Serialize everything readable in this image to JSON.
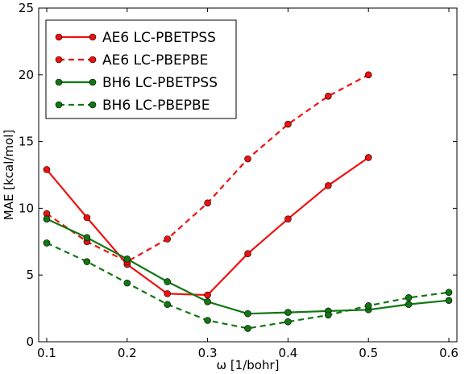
{
  "chart_data": {
    "type": "line",
    "title": "",
    "xlabel": "ω [1/bohr]",
    "ylabel": "MAE [kcal/mol]",
    "xlim": [
      0.09,
      0.61
    ],
    "ylim": [
      0,
      25
    ],
    "xticks": [
      0.1,
      0.2,
      0.3,
      0.4,
      0.5,
      0.6
    ],
    "xtick_labels": [
      "0.1",
      "0.2",
      "0.3",
      "0.4",
      "0.5",
      "0.6"
    ],
    "yticks": [
      0,
      5,
      10,
      15,
      20,
      25
    ],
    "ytick_labels": [
      "0",
      "5",
      "10",
      "15",
      "20",
      "25"
    ],
    "grid": false,
    "legend_position": "top-left",
    "series": [
      {
        "name": "AE6 LC-PBETPSS",
        "color": "#ee1111",
        "linestyle": "solid",
        "x": [
          0.1,
          0.15,
          0.2,
          0.25,
          0.3,
          0.35,
          0.4,
          0.45,
          0.5
        ],
        "y": [
          12.9,
          9.3,
          5.8,
          3.6,
          3.5,
          6.6,
          9.2,
          11.7,
          13.8
        ]
      },
      {
        "name": "AE6 LC-PBEPBE",
        "color": "#ee1111",
        "linestyle": "dashed",
        "x": [
          0.1,
          0.15,
          0.2,
          0.25,
          0.3,
          0.35,
          0.4,
          0.45,
          0.5
        ],
        "y": [
          9.6,
          7.5,
          6.0,
          7.7,
          10.4,
          13.7,
          16.3,
          18.4,
          20.0
        ]
      },
      {
        "name": "BH6 LC-PBETPSS",
        "color": "#117711",
        "linestyle": "solid",
        "x": [
          0.1,
          0.15,
          0.2,
          0.25,
          0.3,
          0.35,
          0.4,
          0.45,
          0.5,
          0.55,
          0.6
        ],
        "y": [
          9.2,
          7.8,
          6.2,
          4.5,
          3.0,
          2.1,
          2.2,
          2.3,
          2.4,
          2.8,
          3.1
        ]
      },
      {
        "name": "BH6 LC-PBEPBE",
        "color": "#117711",
        "linestyle": "dashed",
        "x": [
          0.1,
          0.15,
          0.2,
          0.25,
          0.3,
          0.35,
          0.4,
          0.45,
          0.5,
          0.55,
          0.6
        ],
        "y": [
          7.4,
          6.0,
          4.4,
          2.8,
          1.6,
          1.0,
          1.5,
          2.0,
          2.7,
          3.3,
          3.7
        ]
      }
    ]
  }
}
